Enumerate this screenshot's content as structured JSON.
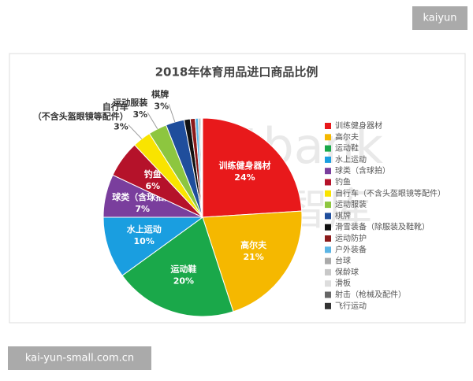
{
  "chart_data": {
    "type": "pie",
    "title": "2018年体育用品进口商品比例",
    "categories": [
      "训练健身器材",
      "高尔夫",
      "运动鞋",
      "水上运动",
      "球类（含球拍）",
      "钓鱼",
      "自行车（不含头盔眼镜等配件）",
      "运动服装",
      "棋牌",
      "滑雪装备（除服装及鞋靴）",
      "运动防护",
      "户外装备",
      "台球",
      "保龄球",
      "滑板",
      "射击（枪械及配件）",
      "飞行运动"
    ],
    "values": [
      24,
      21,
      20,
      10,
      7,
      6,
      3,
      3,
      3,
      1,
      0.8,
      0.5,
      0.3,
      0.2,
      0.1,
      0.05,
      0.05
    ],
    "value_labels": [
      "24%",
      "21%",
      "20%",
      "10%",
      "7%",
      "6%",
      "3%",
      "3%",
      "3%",
      null,
      null,
      null,
      null,
      null,
      null,
      null,
      null
    ],
    "colors": [
      "#e8191b",
      "#f5b800",
      "#1aa84a",
      "#1a9ee0",
      "#7a3e9d",
      "#b5122a",
      "#f9e400",
      "#8dc63f",
      "#1f4e9c",
      "#111111",
      "#8b1a1a",
      "#5bb5e5",
      "#aaaaaa",
      "#c8c8c8",
      "#dddddd",
      "#666666",
      "#333333"
    ],
    "legend": "right"
  },
  "watermarks": {
    "corner": "kaiyun",
    "footer": "kai-yun-small.com.cn",
    "logo": "sportbank",
    "logo_cn": "体银智库"
  }
}
